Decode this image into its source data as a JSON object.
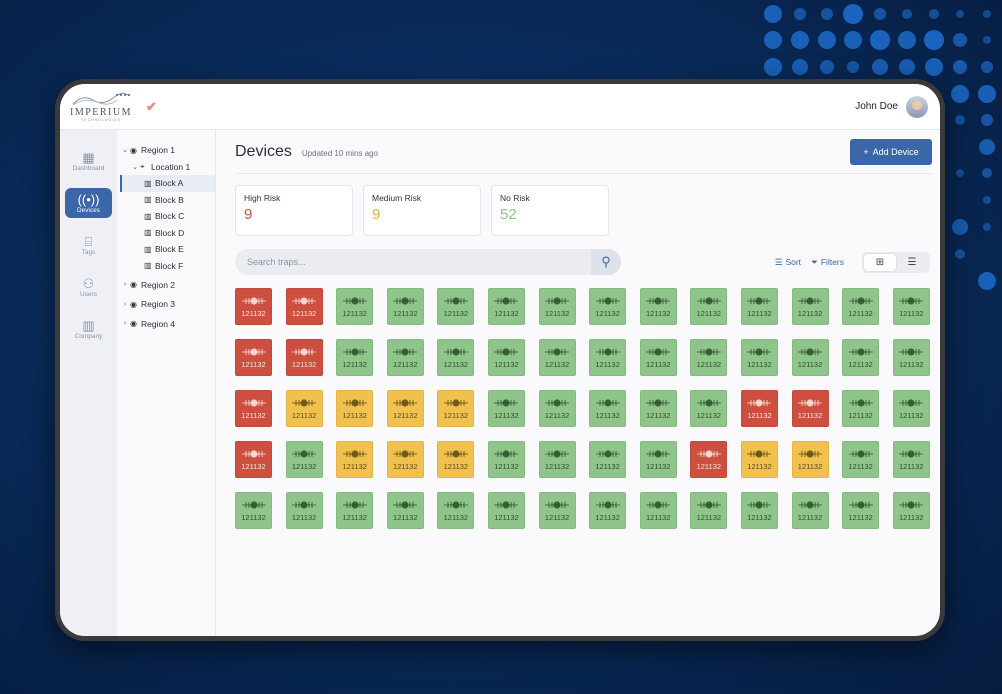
{
  "brand": {
    "name": "IMPERIUM",
    "sub": "TECHNOLOGIES"
  },
  "user": {
    "name": "John Doe"
  },
  "nav": [
    {
      "label": "Dashboard",
      "icon": "grid-icon"
    },
    {
      "label": "Devices",
      "icon": "signal-icon",
      "active": true
    },
    {
      "label": "Tags",
      "icon": "tag-icon"
    },
    {
      "label": "Users",
      "icon": "users-icon"
    },
    {
      "label": "Company",
      "icon": "building-icon"
    }
  ],
  "tree": {
    "region1": "Region 1",
    "location1": "Location 1",
    "blocks": [
      "Block A",
      "Block B",
      "Block C",
      "Block D",
      "Block E",
      "Block F"
    ],
    "region2": "Region 2",
    "region3": "Region 3",
    "region4": "Region 4"
  },
  "main": {
    "title": "Devices",
    "updated": "Updated 10 mins ago",
    "add_button": "Add Device"
  },
  "summary": [
    {
      "label": "High Risk",
      "value": "9",
      "color": "#d0503f"
    },
    {
      "label": "Medium Risk",
      "value": "9",
      "color": "#e6b33a"
    },
    {
      "label": "No Risk",
      "value": "52",
      "color": "#8fc58a"
    }
  ],
  "search": {
    "placeholder": "Search traps..."
  },
  "tools": {
    "sort": "Sort",
    "filters": "Filters"
  },
  "devices": {
    "id": "121132",
    "rows": [
      [
        "red",
        "red",
        "green",
        "green",
        "green",
        "green",
        "green",
        "green",
        "green",
        "green",
        "green",
        "green",
        "green",
        "green"
      ],
      [
        "red",
        "red",
        "green",
        "green",
        "green",
        "green",
        "green",
        "green",
        "green",
        "green",
        "green",
        "green",
        "green",
        "green"
      ],
      [
        "red",
        "yellow",
        "yellow",
        "yellow",
        "yellow",
        "green",
        "green",
        "green",
        "green",
        "green",
        "red",
        "red",
        "green",
        "green"
      ],
      [
        "red",
        "green",
        "yellow",
        "yellow",
        "yellow",
        "green",
        "green",
        "green",
        "green",
        "red",
        "yellow",
        "yellow",
        "green",
        "green"
      ],
      [
        "green",
        "green",
        "green",
        "green",
        "green",
        "green",
        "green",
        "green",
        "green",
        "green",
        "green",
        "green",
        "green",
        "green"
      ]
    ]
  }
}
